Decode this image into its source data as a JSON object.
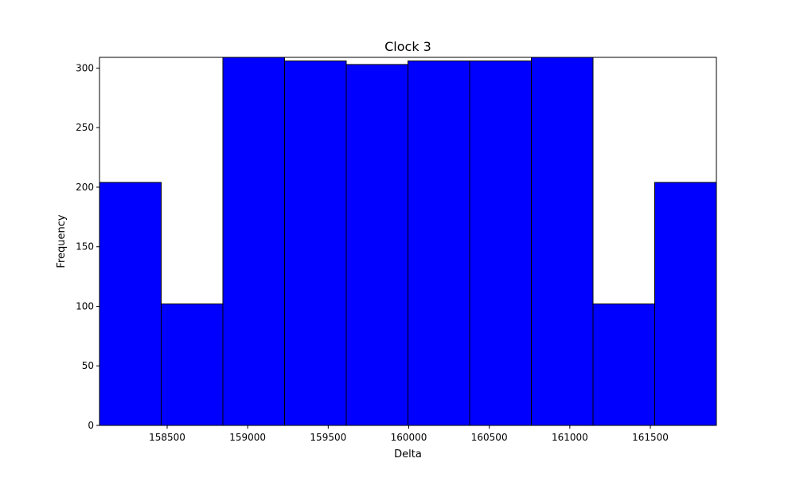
{
  "chart_data": {
    "type": "bar",
    "title": "Clock 3",
    "xlabel": "Delta",
    "ylabel": "Frequency",
    "bin_edges": [
      158080,
      158463,
      158846,
      159229,
      159612,
      159995,
      160378,
      160761,
      161144,
      161527,
      161910
    ],
    "values": [
      204,
      102,
      309,
      306,
      303,
      306,
      306,
      309,
      102,
      204
    ],
    "xlim": [
      158080,
      161910
    ],
    "ylim": [
      0,
      309
    ],
    "xticks": [
      158500,
      159000,
      159500,
      160000,
      160500,
      161000,
      161500
    ],
    "yticks": [
      0,
      50,
      100,
      150,
      200,
      250,
      300
    ],
    "bar_color": "#0000ff",
    "edge_color": "#000000",
    "grid": false,
    "legend": null
  }
}
